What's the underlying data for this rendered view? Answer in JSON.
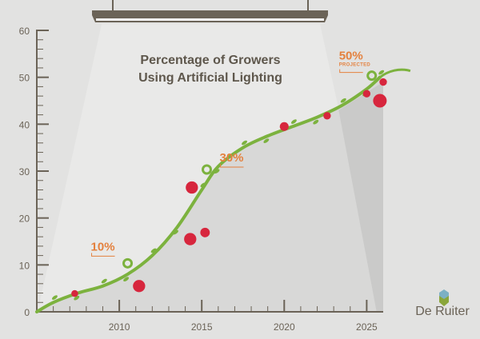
{
  "chart_data": {
    "type": "line",
    "title": "Percentage of Growers Using Artificial Lighting",
    "xlabel": "",
    "ylabel": "",
    "xlim": [
      2005,
      2026
    ],
    "ylim": [
      0,
      60
    ],
    "x_ticks": [
      2010,
      2015,
      2020,
      2025
    ],
    "y_ticks": [
      0,
      10,
      20,
      30,
      40,
      50,
      60
    ],
    "grid": false,
    "series": [
      {
        "x": [
          2005,
          2006,
          2007.5,
          2009,
          2010.5,
          2012,
          2013.5,
          2015,
          2016,
          2017.5,
          2019,
          2020.5,
          2022,
          2023.5,
          2025,
          2025.8
        ],
        "y": [
          0,
          2,
          4,
          5.5,
          8,
          12,
          18,
          26,
          31,
          35,
          37.5,
          39.5,
          41.5,
          44,
          47.5,
          50
        ]
      }
    ],
    "annotations": [
      {
        "x": 2010.7,
        "y": 10,
        "label": "10%"
      },
      {
        "x": 2015.5,
        "y": 30,
        "label": "30%"
      },
      {
        "x": 2025.5,
        "y": 50,
        "label": "50%",
        "sublabel": "PROJECTED"
      }
    ],
    "colors": {
      "vine": "#7cb23e",
      "tomato": "#d7263d",
      "annotation": "#e4813e",
      "axis": "#6b6357"
    }
  },
  "logo": {
    "text": "De Ruiter"
  }
}
